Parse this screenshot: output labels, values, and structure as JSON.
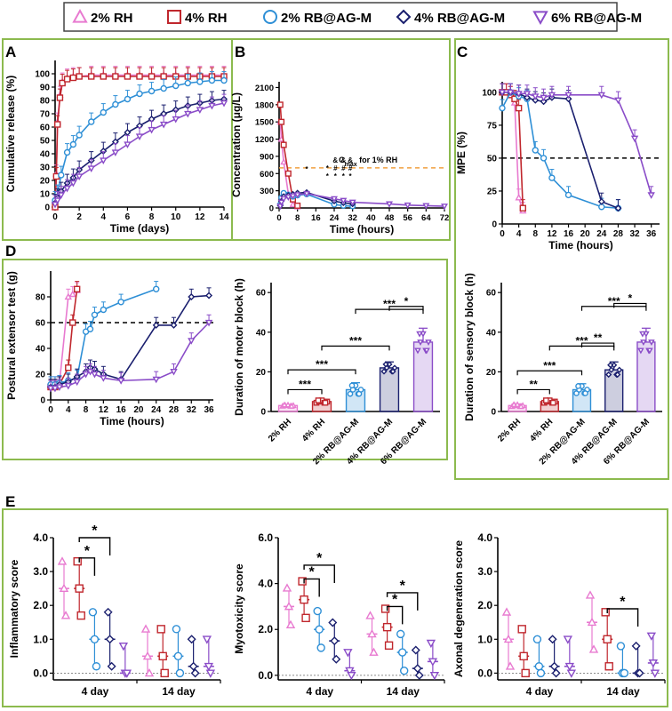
{
  "legend": [
    {
      "label": "2% RH",
      "marker": "triangle",
      "color": "#e87ad0"
    },
    {
      "label": "4% RH",
      "marker": "square",
      "color": "#c0272d"
    },
    {
      "label": "2% RB@AG-M",
      "marker": "circle",
      "color": "#2e8fd6"
    },
    {
      "label": "4% RB@AG-M",
      "marker": "diamond",
      "color": "#1a1f6e"
    },
    {
      "label": "6% RB@AG-M",
      "marker": "triangle-down",
      "color": "#8a4cc8"
    }
  ],
  "panel_letters": [
    "A",
    "B",
    "C",
    "D",
    "E"
  ],
  "chart_data": [
    {
      "id": "A",
      "type": "line",
      "xlabel": "Time (days)",
      "ylabel": "Cumulative release (%)",
      "xlim": [
        0,
        14
      ],
      "ylim": [
        0,
        110
      ],
      "xticks": [
        0,
        2,
        4,
        6,
        8,
        10,
        12,
        14
      ],
      "yticks": [
        0,
        10,
        20,
        30,
        40,
        50,
        60,
        70,
        80,
        90,
        100
      ],
      "series": [
        {
          "name": "2% RH",
          "x": [
            0,
            0.1,
            0.2,
            0.4,
            0.6,
            1,
            1.5,
            2,
            3,
            4,
            5,
            6,
            7,
            8,
            9,
            10,
            11,
            12,
            13,
            14
          ],
          "y": [
            0,
            25,
            64,
            84,
            94,
            97,
            98,
            98,
            99,
            99,
            99,
            99,
            99,
            99,
            99,
            99,
            99,
            99,
            99,
            99
          ]
        },
        {
          "name": "4% RH",
          "x": [
            0,
            0.1,
            0.2,
            0.4,
            0.6,
            1,
            1.5,
            2,
            3,
            4,
            5,
            6,
            7,
            8,
            9,
            10,
            11,
            12,
            13,
            14
          ],
          "y": [
            0,
            23,
            62,
            82,
            93,
            96,
            97,
            98,
            98,
            98,
            98,
            98,
            98,
            98,
            98,
            98,
            98,
            98,
            98,
            98
          ]
        },
        {
          "name": "2% RB@AG-M",
          "x": [
            0,
            0.2,
            0.5,
            1,
            1.5,
            2,
            3,
            4,
            5,
            6,
            7,
            8,
            9,
            10,
            11,
            12,
            13,
            14
          ],
          "y": [
            5,
            10,
            24,
            41,
            47,
            54,
            64,
            71,
            77,
            81,
            85,
            87,
            89,
            91,
            93,
            94,
            95,
            95
          ]
        },
        {
          "name": "4% RB@AG-M",
          "x": [
            0,
            0.2,
            0.5,
            1,
            1.5,
            2,
            3,
            4,
            5,
            6,
            7,
            8,
            9,
            10,
            11,
            12,
            13,
            14
          ],
          "y": [
            3,
            7,
            12,
            18,
            22,
            28,
            35,
            42,
            49,
            56,
            61,
            66,
            70,
            73,
            76,
            78,
            80,
            81
          ]
        },
        {
          "name": "6% RB@AG-M",
          "x": [
            0,
            0.2,
            0.5,
            1,
            1.5,
            2,
            3,
            4,
            5,
            6,
            7,
            8,
            9,
            10,
            11,
            12,
            13,
            14
          ],
          "y": [
            2,
            5,
            9,
            14,
            18,
            23,
            29,
            35,
            41,
            47,
            53,
            58,
            62,
            66,
            70,
            73,
            76,
            78
          ]
        }
      ]
    },
    {
      "id": "B",
      "type": "line",
      "xlabel": "Time (hours)",
      "ylabel": "Concentration (μg/L)",
      "xlim": [
        0,
        72
      ],
      "ylim": [
        0,
        2200
      ],
      "xticks": [
        0,
        8,
        16,
        24,
        32,
        40,
        48,
        56,
        64,
        72
      ],
      "yticks": [
        0,
        300,
        600,
        900,
        1200,
        1500,
        1800,
        2100
      ],
      "reference_line": {
        "value": 700,
        "label": "C",
        "label_sub": "max",
        "label_rest": " for  1% RH"
      },
      "annotations": [
        "*",
        "* *",
        "* # &",
        "* # &",
        "* # &"
      ],
      "series": [
        {
          "name": "2% RH",
          "x": [
            0.5,
            1,
            2,
            4,
            6,
            8
          ],
          "y": [
            1500,
            1200,
            800,
            250,
            60,
            20
          ]
        },
        {
          "name": "4% RH",
          "x": [
            0.5,
            1,
            2,
            4,
            6,
            8
          ],
          "y": [
            1800,
            1500,
            1100,
            600,
            150,
            40
          ]
        },
        {
          "name": "2% RB@AG-M",
          "x": [
            0.5,
            1,
            2,
            4,
            6,
            8,
            12,
            24,
            28,
            32
          ],
          "y": [
            60,
            180,
            260,
            230,
            200,
            220,
            240,
            60,
            40,
            30
          ]
        },
        {
          "name": "4% RB@AG-M",
          "x": [
            0.5,
            1,
            2,
            4,
            6,
            8,
            12,
            24,
            28,
            32
          ],
          "y": [
            40,
            120,
            200,
            220,
            240,
            260,
            270,
            120,
            90,
            70
          ]
        },
        {
          "name": "6% RB@AG-M",
          "x": [
            0.5,
            1,
            2,
            4,
            6,
            8,
            12,
            24,
            28,
            32,
            48,
            56,
            64,
            72
          ],
          "y": [
            30,
            100,
            160,
            190,
            210,
            230,
            250,
            160,
            130,
            100,
            70,
            50,
            40,
            30
          ]
        }
      ]
    },
    {
      "id": "C",
      "type": "line",
      "xlabel": "Time (hours)",
      "ylabel": "MPE (%)",
      "xlim": [
        0,
        38
      ],
      "ylim": [
        0,
        108
      ],
      "xticks": [
        0,
        4,
        8,
        12,
        16,
        20,
        24,
        28,
        32,
        36
      ],
      "yticks": [
        0,
        25,
        50,
        75,
        100
      ],
      "reference_line": {
        "value": 50
      },
      "series": [
        {
          "name": "2% RH",
          "x": [
            0,
            1,
            2,
            3,
            4,
            5
          ],
          "y": [
            100,
            100,
            98,
            92,
            20,
            10
          ]
        },
        {
          "name": "4% RH",
          "x": [
            0,
            1,
            2,
            3,
            4,
            5
          ],
          "y": [
            100,
            100,
            98,
            95,
            88,
            12
          ]
        },
        {
          "name": "2% RB@AG-M",
          "x": [
            0,
            2,
            4,
            6,
            8,
            10,
            12,
            16,
            24,
            28
          ],
          "y": [
            88,
            100,
            97,
            95,
            56,
            50,
            35,
            22,
            13,
            12
          ]
        },
        {
          "name": "4% RB@AG-M",
          "x": [
            0,
            2,
            4,
            6,
            8,
            10,
            12,
            16,
            24,
            28
          ],
          "y": [
            100,
            100,
            99,
            96,
            94,
            93,
            96,
            95,
            17,
            12
          ]
        },
        {
          "name": "6% RB@AG-M",
          "x": [
            0,
            2,
            4,
            6,
            8,
            10,
            12,
            16,
            24,
            28,
            32,
            36
          ],
          "y": [
            100,
            100,
            99,
            99,
            97,
            96,
            98,
            98,
            98,
            94,
            65,
            22
          ]
        }
      ]
    },
    {
      "id": "D-left",
      "type": "line",
      "xlabel": "Time (hours)",
      "ylabel": "Postural extensor test (g)",
      "xlim": [
        0,
        37
      ],
      "ylim": [
        0,
        100
      ],
      "xticks": [
        0,
        4,
        8,
        12,
        16,
        20,
        24,
        28,
        32,
        36
      ],
      "yticks": [
        0,
        20,
        40,
        60,
        80
      ],
      "reference_line": {
        "value": 60
      },
      "series": [
        {
          "name": "2% RH",
          "x": [
            0,
            1,
            2,
            4,
            5,
            6
          ],
          "y": [
            12,
            12,
            13,
            80,
            82,
            85
          ]
        },
        {
          "name": "4% RH",
          "x": [
            0,
            1,
            2,
            4,
            5,
            6
          ],
          "y": [
            10,
            10,
            12,
            25,
            60,
            86
          ]
        },
        {
          "name": "2% RB@AG-M",
          "x": [
            0,
            1,
            2,
            4,
            6,
            8,
            9,
            10,
            12,
            16,
            24
          ],
          "y": [
            12,
            12,
            13,
            15,
            17,
            53,
            55,
            66,
            70,
            76,
            86
          ]
        },
        {
          "name": "4% RB@AG-M",
          "x": [
            0,
            1,
            2,
            4,
            6,
            8,
            9,
            10,
            12,
            16,
            24,
            28,
            32,
            36
          ],
          "y": [
            10,
            10,
            12,
            14,
            18,
            22,
            25,
            24,
            20,
            16,
            58,
            58,
            80,
            81
          ]
        },
        {
          "name": "6% RB@AG-M",
          "x": [
            0,
            1,
            2,
            4,
            6,
            8,
            9,
            10,
            12,
            16,
            24,
            28,
            32,
            36
          ],
          "y": [
            9,
            9,
            10,
            11,
            14,
            20,
            22,
            20,
            17,
            15,
            16,
            22,
            46,
            60
          ]
        }
      ]
    },
    {
      "id": "D-right",
      "type": "bar",
      "ylabel": "Duration of motor block (h)",
      "categories": [
        "2% RH",
        "4% RH",
        "2% RB@AG-M",
        "4% RB@AG-M",
        "6% RB@AG-M"
      ],
      "values": [
        3,
        5,
        11,
        22,
        35
      ],
      "errors": [
        0.5,
        1,
        3.5,
        3,
        7
      ],
      "ylim": [
        0,
        65
      ],
      "yticks": [
        0,
        20,
        40,
        60
      ],
      "significance": [
        {
          "from": 0,
          "to": 1,
          "label": "***"
        },
        {
          "from": 0,
          "to": 2,
          "label": "***"
        },
        {
          "from": 1,
          "to": 3,
          "label": "***"
        },
        {
          "from": 2,
          "to": 4,
          "label": "***"
        },
        {
          "from": 3,
          "to": 4,
          "label": "*"
        }
      ]
    },
    {
      "id": "C-bottom",
      "type": "bar",
      "ylabel": "Duration of sensory block (h)",
      "categories": [
        "2% RH",
        "4% RH",
        "2% RB@AG-M",
        "4% RB@AG-M",
        "6% RB@AG-M"
      ],
      "values": [
        3,
        5,
        11,
        21,
        35
      ],
      "errors": [
        0.8,
        1,
        3,
        4,
        7
      ],
      "ylim": [
        0,
        65
      ],
      "yticks": [
        0,
        20,
        40,
        60
      ],
      "significance": [
        {
          "from": 0,
          "to": 1,
          "label": "**"
        },
        {
          "from": 0,
          "to": 2,
          "label": "***"
        },
        {
          "from": 1,
          "to": 3,
          "label": "***"
        },
        {
          "from": 2,
          "to": 3,
          "label": "**"
        },
        {
          "from": 2,
          "to": 4,
          "label": "***"
        },
        {
          "from": 3,
          "to": 4,
          "label": "*"
        }
      ]
    },
    {
      "id": "E1",
      "type": "scatter",
      "ylabel": "Inflammatory score",
      "groups": [
        "4 day",
        "14 day"
      ],
      "ylim": [
        -0.2,
        4.0
      ],
      "yticks": [
        "0.0",
        "1.0",
        "2.0",
        "3.0",
        "4.0"
      ],
      "means": [
        [
          2.5,
          2.5,
          1.0,
          1.0,
          0.0
        ],
        [
          0.5,
          0.5,
          0.5,
          0.2,
          0.2
        ]
      ],
      "significance": [
        {
          "group": 0,
          "from": 1,
          "to": 2,
          "label": "*"
        },
        {
          "group": 0,
          "from": 1,
          "to": 3,
          "label": "*"
        }
      ]
    },
    {
      "id": "E2",
      "type": "scatter",
      "ylabel": "Myotoxicity score",
      "groups": [
        "4 day",
        "14 day"
      ],
      "ylim": [
        -0.2,
        6.0
      ],
      "yticks": [
        "0.0",
        "2.0",
        "4.0",
        "6.0"
      ],
      "means": [
        [
          3.0,
          3.3,
          2.0,
          1.5,
          0.2
        ],
        [
          1.8,
          2.1,
          1.0,
          0.3,
          0.6
        ]
      ],
      "significance": [
        {
          "group": 0,
          "from": 1,
          "to": 2,
          "label": "*"
        },
        {
          "group": 0,
          "from": 1,
          "to": 3,
          "label": "*"
        },
        {
          "group": 1,
          "from": 1,
          "to": 2,
          "label": "*"
        },
        {
          "group": 1,
          "from": 1,
          "to": 3,
          "label": "*"
        }
      ]
    },
    {
      "id": "E3",
      "type": "scatter",
      "ylabel": "Axonal degeneration score",
      "groups": [
        "4 day",
        "14 day"
      ],
      "ylim": [
        -0.2,
        4.0
      ],
      "yticks": [
        "0.0",
        "1.0",
        "2.0",
        "3.0",
        "4.0"
      ],
      "means": [
        [
          1.0,
          0.5,
          0.2,
          0.2,
          0.2
        ],
        [
          1.5,
          1.0,
          0.0,
          0.0,
          0.3
        ]
      ],
      "significance": [
        {
          "group": 1,
          "from": 1,
          "to": 3,
          "label": "*"
        }
      ]
    }
  ]
}
